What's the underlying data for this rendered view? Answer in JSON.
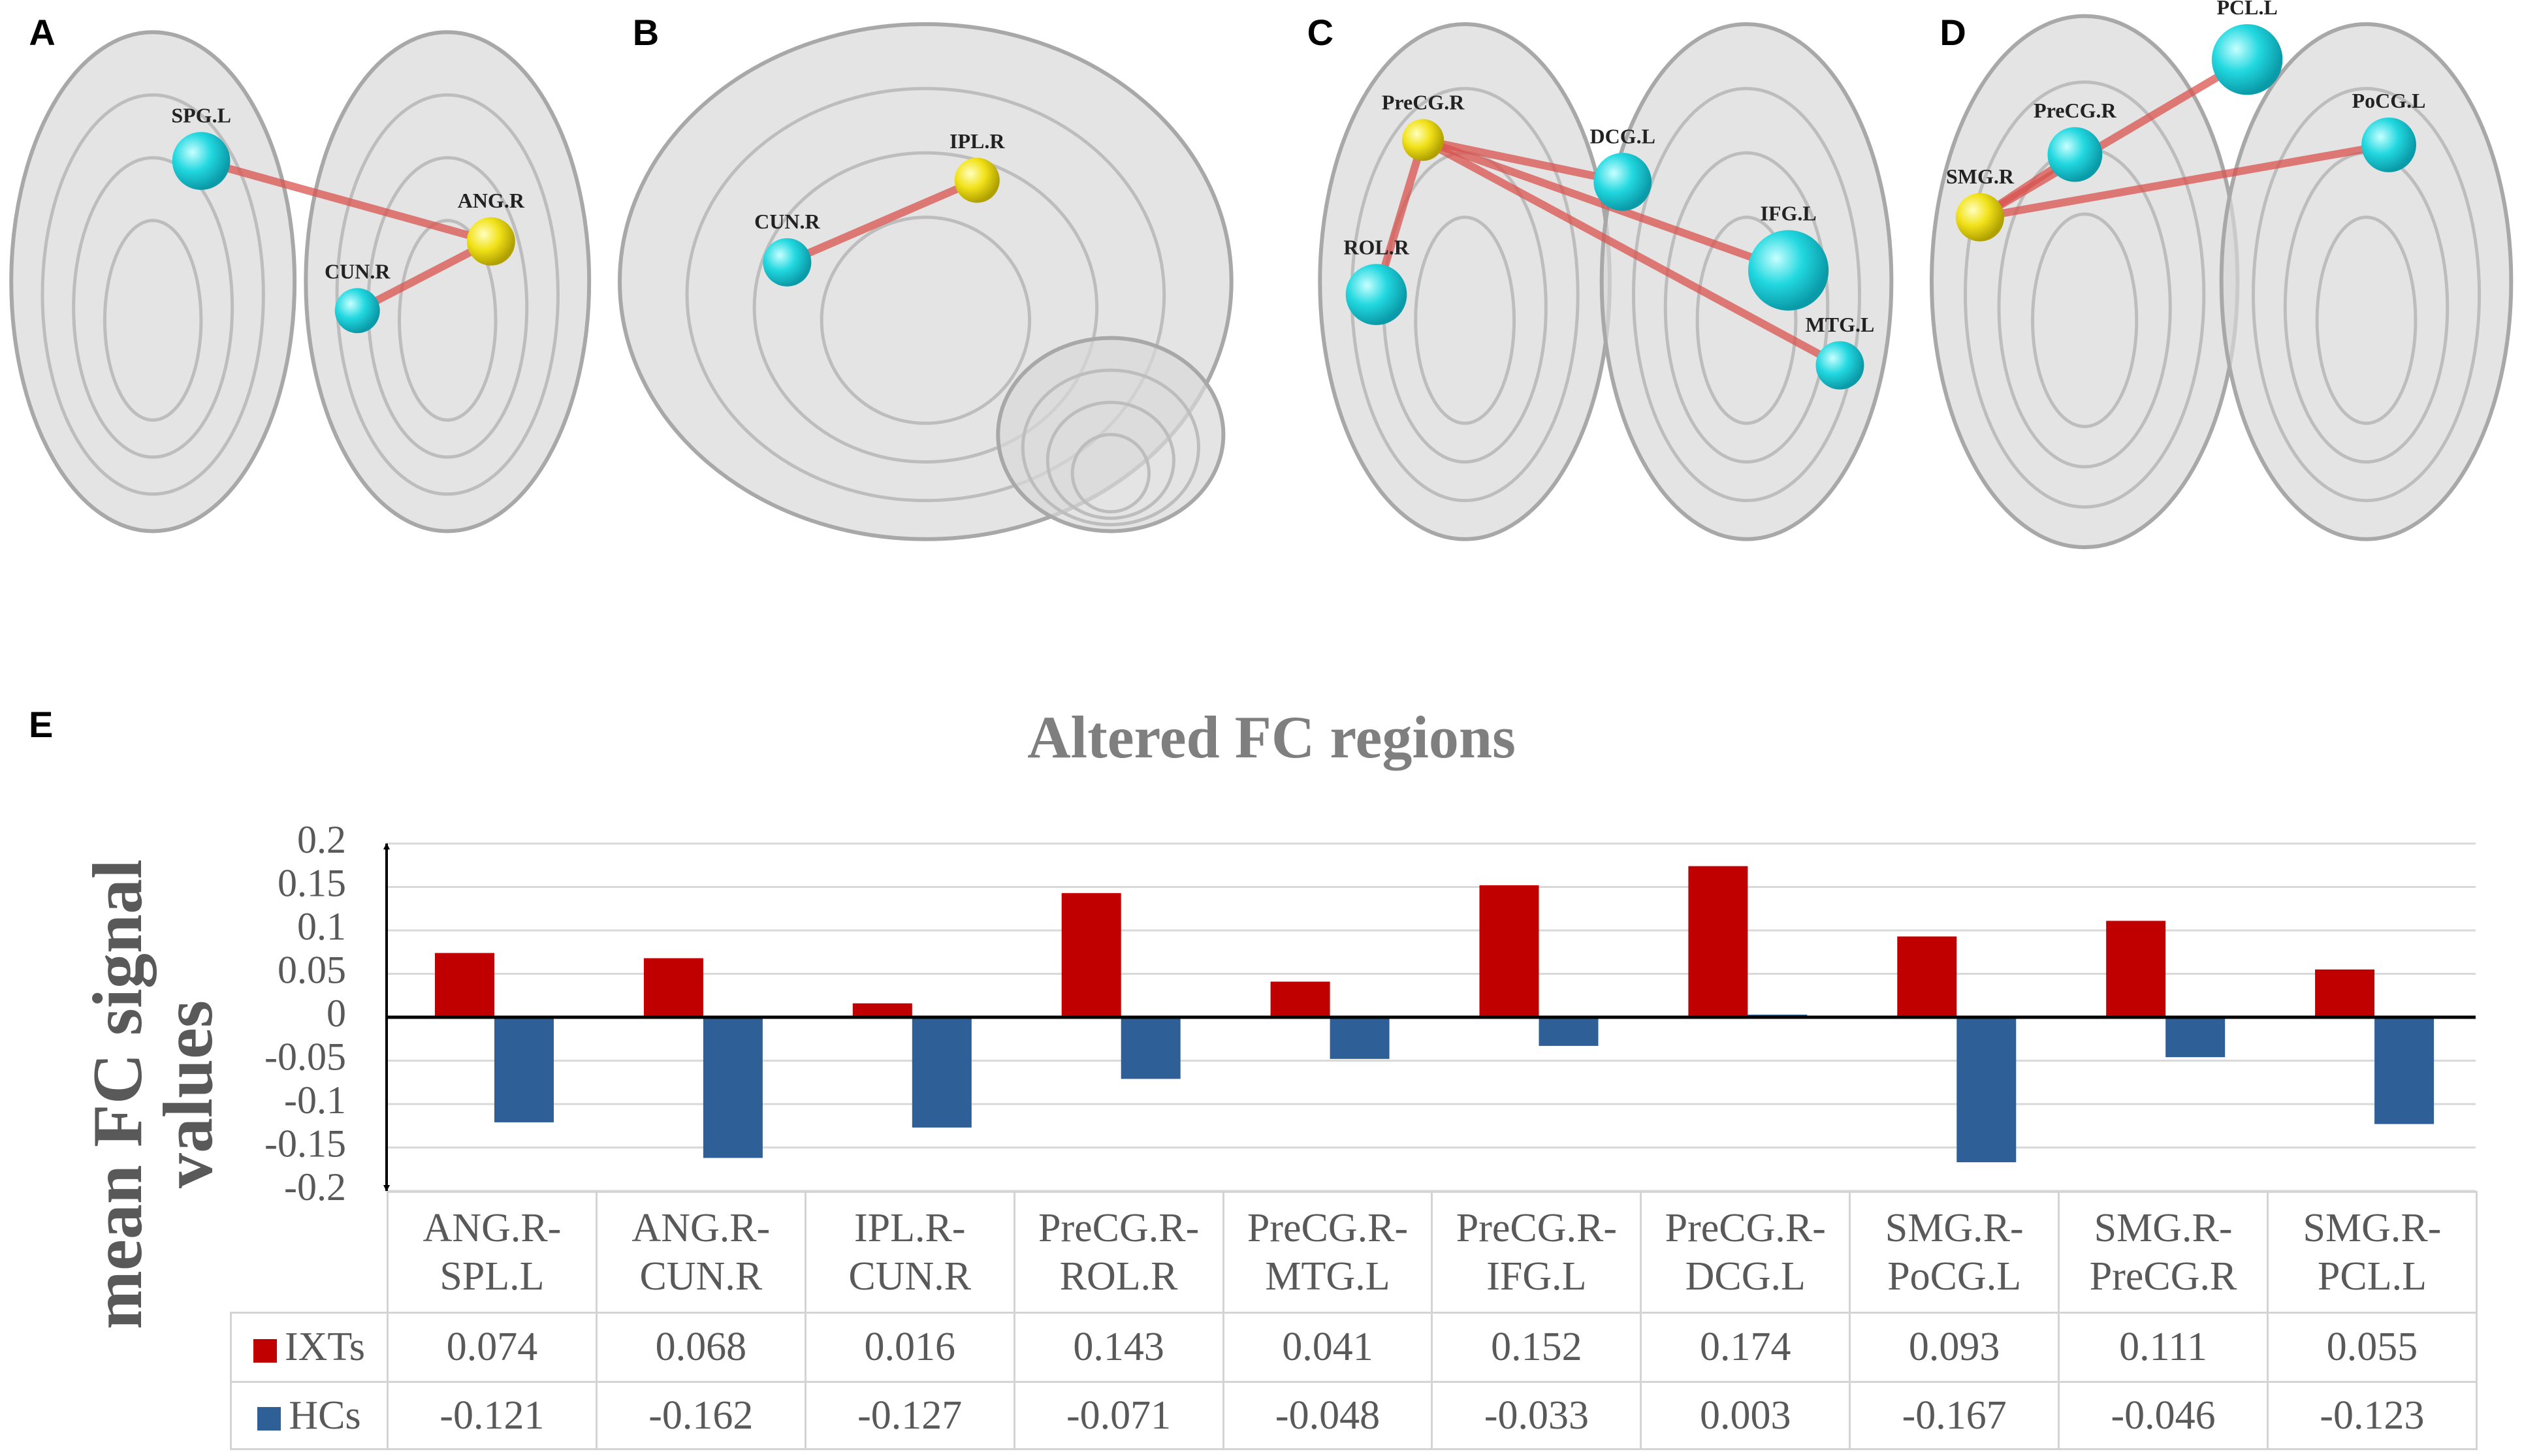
{
  "panels": [
    {
      "label": "A",
      "nodes": [
        "SPG.L",
        "ANG.R",
        "CUN.R"
      ]
    },
    {
      "label": "B",
      "nodes": [
        "CUN.R",
        "IPL.R"
      ]
    },
    {
      "label": "C",
      "nodes": [
        "PreCG.R",
        "DCG.L",
        "IFG.L",
        "ROL.R",
        "MTG.L"
      ]
    },
    {
      "label": "D",
      "nodes": [
        "PCL.L",
        "PreCG.R",
        "PoCG.L",
        "SMG.R"
      ]
    }
  ],
  "chart_panel_label": "E",
  "chart_data": {
    "type": "bar",
    "title": "Altered FC regions",
    "y_label": "mean FC signal values",
    "categories": [
      "ANG.R-SPL.L",
      "ANG.R-CUN.R",
      "IPL.R-CUN.R",
      "PreCG.R-ROL.R",
      "PreCG.R-MTG.L",
      "PreCG.R-IFG.L",
      "PreCG.R-DCG.L",
      "SMG.R-PoCG.L",
      "SMG.R-PreCG.R",
      "SMG.R-PCL.L"
    ],
    "series": [
      {
        "name": "IXTs",
        "color": "#c00000",
        "values": [
          0.074,
          0.068,
          0.016,
          0.143,
          0.041,
          0.152,
          0.174,
          0.093,
          0.111,
          0.055
        ]
      },
      {
        "name": "HCs",
        "color": "#2f5f97",
        "values": [
          -0.121,
          -0.162,
          -0.127,
          -0.071,
          -0.048,
          -0.033,
          0.003,
          -0.167,
          -0.046,
          -0.123
        ]
      }
    ],
    "ylim": [
      -0.2,
      0.2
    ],
    "yticks": [
      -0.2,
      -0.15,
      -0.1,
      -0.05,
      0,
      0.05,
      0.1,
      0.15,
      0.2
    ],
    "grid": true
  }
}
